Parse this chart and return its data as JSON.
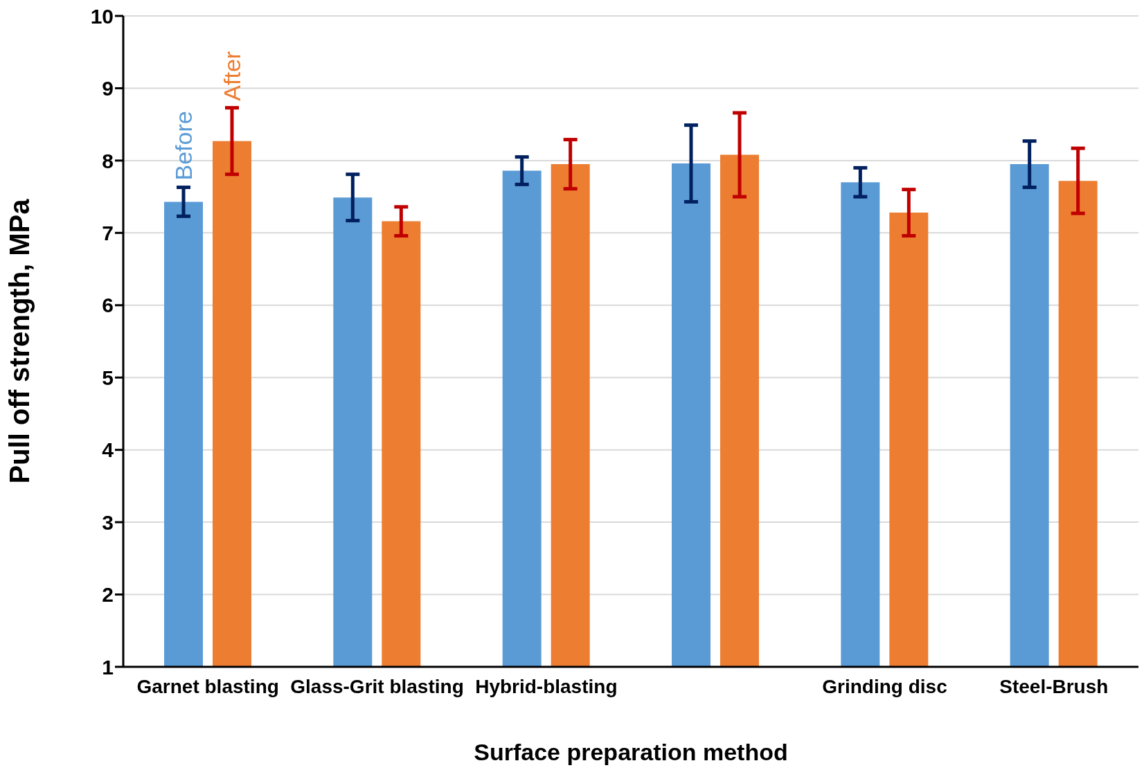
{
  "chart_data": {
    "type": "bar",
    "xlabel": "Surface preparation method",
    "ylabel": "Pull off strength, MPa",
    "categories": [
      "Garnet blasting",
      "Glass-Grit blasting",
      "Hybrid-blasting",
      null,
      "Grinding disc",
      "Steel-Brush"
    ],
    "series": [
      {
        "name": "Before",
        "color": "#5b9bd5",
        "values": [
          7.43,
          7.49,
          7.86,
          7.96,
          7.7,
          7.95
        ],
        "errors": [
          0.2,
          0.32,
          0.19,
          0.53,
          0.2,
          0.32
        ]
      },
      {
        "name": "After",
        "color": "#ed7d31",
        "values": [
          8.27,
          7.16,
          7.95,
          8.08,
          7.28,
          7.72
        ],
        "errors": [
          0.46,
          0.2,
          0.34,
          0.58,
          0.32,
          0.45
        ]
      }
    ],
    "ylim": [
      1,
      10
    ],
    "yticks": [
      1,
      2,
      3,
      4,
      5,
      6,
      7,
      8,
      9,
      10
    ],
    "grid": "y",
    "legend": false
  }
}
